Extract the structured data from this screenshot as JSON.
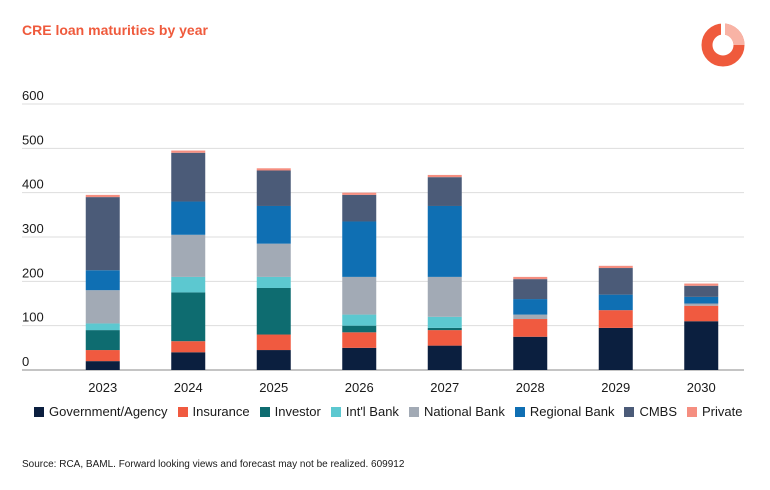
{
  "title": "CRE loan maturities by year",
  "source": "Source: RCA, BAML. Forward looking views and forecast may not be realized. 609912",
  "logo": {
    "icon": "ring-logo-icon",
    "color": "#ef5a3c"
  },
  "chart_data": {
    "type": "bar",
    "stacked": true,
    "grid": true,
    "legend_position": "bottom",
    "ylim": [
      0,
      600
    ],
    "yticks": [
      "0",
      "100",
      "200",
      "300",
      "400",
      "500",
      "600"
    ],
    "categories": [
      "2023",
      "2024",
      "2025",
      "2026",
      "2027",
      "2028",
      "2029",
      "2030"
    ],
    "series": [
      {
        "name": "Government/Agency",
        "color": "#0b1f3f",
        "values": [
          20,
          40,
          45,
          50,
          55,
          75,
          95,
          110
        ]
      },
      {
        "name": "Insurance",
        "color": "#f05a40",
        "values": [
          25,
          25,
          35,
          35,
          35,
          40,
          40,
          35
        ]
      },
      {
        "name": "Investor",
        "color": "#0e6c70",
        "values": [
          45,
          110,
          105,
          15,
          5,
          0,
          0,
          0
        ]
      },
      {
        "name": "Int'l Bank",
        "color": "#5cc8d0",
        "values": [
          15,
          35,
          25,
          25,
          25,
          0,
          0,
          0
        ]
      },
      {
        "name": "National Bank",
        "color": "#a2aab5",
        "values": [
          75,
          95,
          75,
          85,
          90,
          10,
          0,
          5
        ]
      },
      {
        "name": "Regional Bank",
        "color": "#0f6fb3",
        "values": [
          45,
          75,
          85,
          125,
          160,
          35,
          35,
          15
        ]
      },
      {
        "name": "CMBS",
        "color": "#4b5b78",
        "values": [
          165,
          110,
          80,
          60,
          65,
          45,
          60,
          25
        ]
      },
      {
        "name": "Private",
        "color": "#f58e80",
        "values": [
          5,
          5,
          5,
          5,
          5,
          5,
          5,
          5
        ]
      }
    ]
  }
}
